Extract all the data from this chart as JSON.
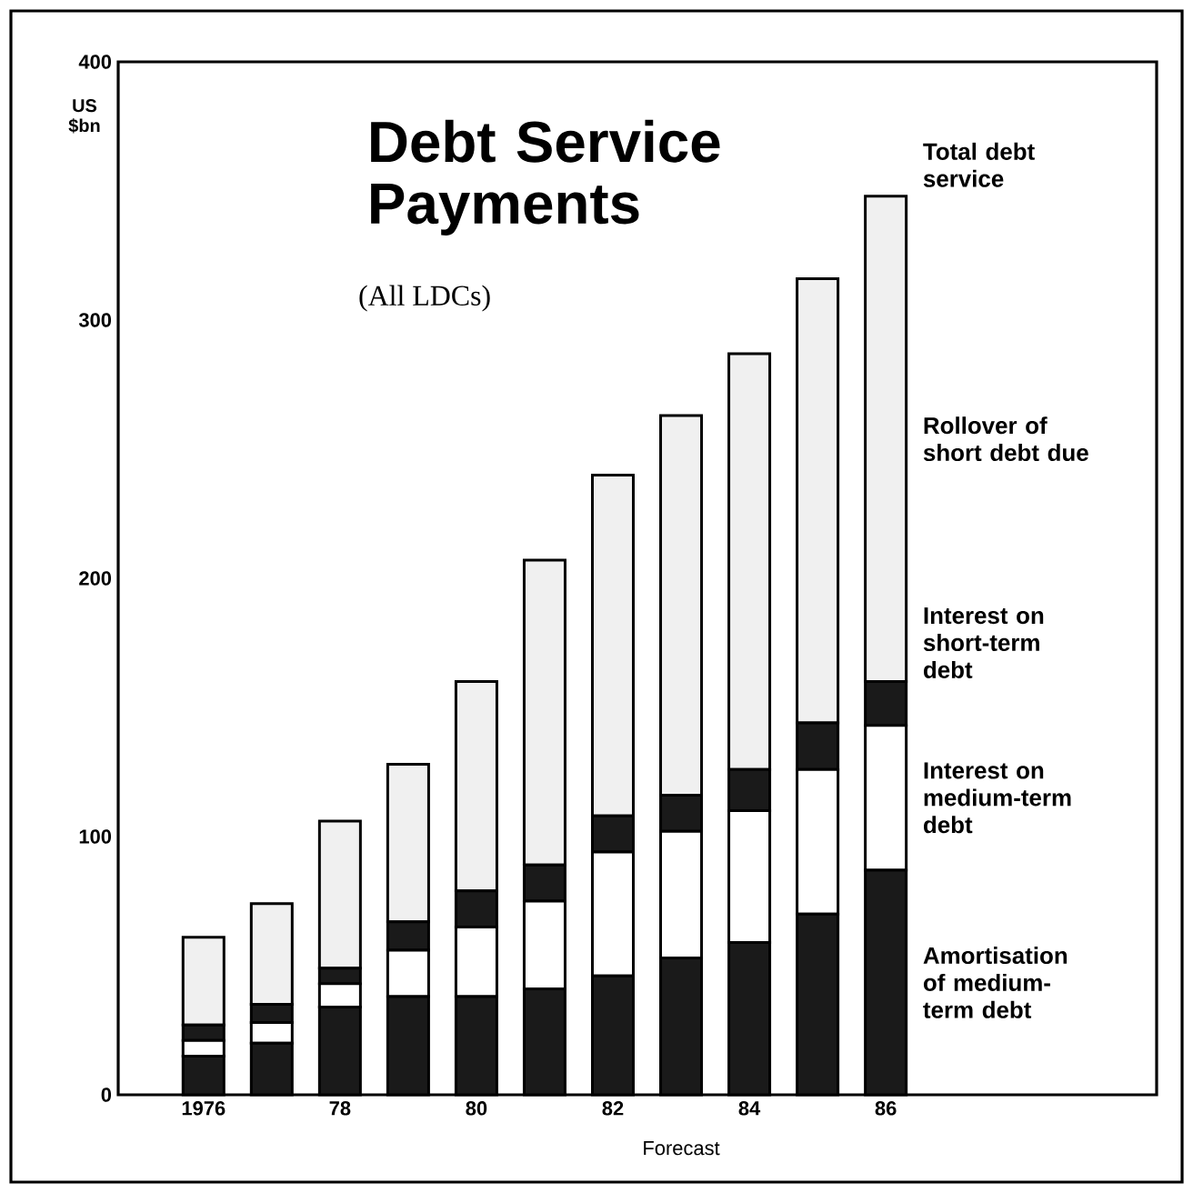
{
  "chart_data": {
    "type": "bar",
    "stacked": true,
    "title": "Debt Service Payments",
    "subtitle": "(All LDCs)",
    "ylabel": "US $bn",
    "categories": [
      "1976",
      null,
      "78",
      null,
      "80",
      null,
      "82",
      null,
      "84",
      null,
      "86"
    ],
    "ylim": [
      0,
      400
    ],
    "yticks": [
      0,
      100,
      200,
      300,
      400
    ],
    "series": [
      {
        "name": "Amortisation of medium-term debt",
        "color": "#1a1a1a",
        "values": [
          15,
          20,
          34,
          38,
          38,
          41,
          46,
          53,
          59,
          70,
          87
        ]
      },
      {
        "name": "Interest on medium-term debt",
        "color": "#ffffff",
        "values": [
          6,
          8,
          9,
          18,
          27,
          34,
          48,
          49,
          51,
          56,
          56
        ]
      },
      {
        "name": "Interest on short-term debt",
        "color": "#1a1a1a",
        "values": [
          6,
          7,
          6,
          11,
          14,
          14,
          14,
          14,
          16,
          18,
          17
        ]
      },
      {
        "name": "Rollover of short debt due",
        "color": "#f0f0f0",
        "values": [
          34,
          39,
          57,
          61,
          81,
          118,
          132,
          147,
          161,
          172,
          188
        ]
      }
    ],
    "annotations": [
      {
        "text": "Total debt service",
        "x": "86",
        "y": 349
      },
      "Forecast"
    ]
  }
}
